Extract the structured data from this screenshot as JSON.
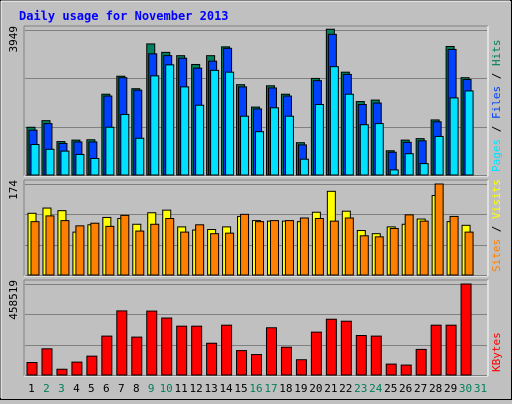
{
  "chart_data": {
    "type": "bar",
    "title": "Daily usage for November 2013",
    "categories": [
      "1",
      "2",
      "3",
      "4",
      "5",
      "6",
      "7",
      "8",
      "9",
      "10",
      "11",
      "12",
      "13",
      "14",
      "15",
      "16",
      "17",
      "18",
      "19",
      "20",
      "21",
      "22",
      "23",
      "24",
      "25",
      "26",
      "27",
      "28",
      "29",
      "30",
      "31"
    ],
    "weekend_days": [
      "2",
      "3",
      "9",
      "10",
      "16",
      "17",
      "23",
      "24",
      "30",
      "31"
    ],
    "colors": {
      "hits": "#00805c",
      "files": "#0040ff",
      "pages": "#00e0ff",
      "visits": "#ffff00",
      "sites": "#ff8000",
      "kbytes": "#ff0000",
      "title": "#0000ff",
      "weekday_label": "#000000",
      "weekend_label": "#00805c",
      "background": "#c0c0c0",
      "plot_background": "#c0c0c0"
    },
    "panels": [
      {
        "id": "hits-files-pages",
        "ymax_label": "3949",
        "ymax": 3949,
        "right_labels": [
          {
            "text": "Hits",
            "color": "#00805c"
          },
          {
            "text": "Files",
            "color": "#0040ff"
          },
          {
            "text": "Pages",
            "color": "#00e0ff"
          }
        ],
        "series": [
          {
            "name": "Hits",
            "values": [
              1300,
              1480,
              910,
              950,
              960,
              2200,
              2690,
              2350,
              3570,
              3340,
              3250,
              3010,
              3250,
              3490,
              2460,
              1850,
              2430,
              2200,
              880,
              2630,
              3970,
              2800,
              2000,
              2040,
              660,
              950,
              990,
              1500,
              3500,
              2650,
              0
            ]
          },
          {
            "name": "Files",
            "values": [
              1220,
              1400,
              860,
              900,
              900,
              2150,
              2650,
              2310,
              3300,
              3250,
              3180,
              2910,
              3100,
              3450,
              2400,
              1800,
              2370,
              2150,
              820,
              2570,
              3830,
              2740,
              1920,
              1960,
              620,
              890,
              930,
              1450,
              3420,
              2600,
              0
            ]
          },
          {
            "name": "Pages",
            "values": [
              830,
              700,
              650,
              560,
              450,
              1300,
              1650,
              1000,
              2700,
              3000,
              2400,
              1900,
              2850,
              2800,
              1600,
              1180,
              1830,
              1600,
              430,
              1920,
              2950,
              2200,
              1370,
              1400,
              140,
              580,
              310,
              1050,
              2100,
              2290,
              0
            ]
          }
        ]
      },
      {
        "id": "visits-sites",
        "ymax_label": "174",
        "ymax": 174,
        "right_labels": [
          {
            "text": "Visits",
            "color": "#ffff00"
          },
          {
            "text": "Sites",
            "color": "#ff8000"
          }
        ],
        "series": [
          {
            "name": "Visits",
            "values": [
              118,
              128,
              123,
              82,
              96,
              110,
              108,
              97,
              119,
              124,
              92,
              86,
              87,
              92,
              112,
              104,
              103,
              103,
              102,
              120,
              160,
              122,
              85,
              79,
              92,
              97,
              107,
              152,
              102,
              95,
              0
            ]
          },
          {
            "name": "Sites",
            "values": [
              102,
              113,
              104,
              94,
              99,
              93,
              114,
              84,
              97,
              108,
              82,
              96,
              79,
              80,
              116,
              102,
              104,
              104,
              109,
              108,
              103,
              109,
              75,
              73,
              89,
              115,
              103,
              174,
              112,
              82,
              0
            ]
          }
        ]
      },
      {
        "id": "kbytes",
        "ymax_label": "458519",
        "ymax": 458519,
        "right_labels": [
          {
            "text": "KBytes",
            "color": "#ff0000"
          }
        ],
        "series": [
          {
            "name": "KBytes",
            "values": [
              63000,
              132000,
              29000,
              65000,
              95000,
              196000,
              323000,
              191000,
              322000,
              287000,
              246000,
              246000,
              160000,
              251000,
              123000,
              103000,
              238000,
              140000,
              77000,
              216000,
              281000,
              271000,
              199000,
              196000,
              55000,
              50000,
              129000,
              251000,
              251000,
              458519,
              0
            ]
          }
        ]
      }
    ]
  }
}
